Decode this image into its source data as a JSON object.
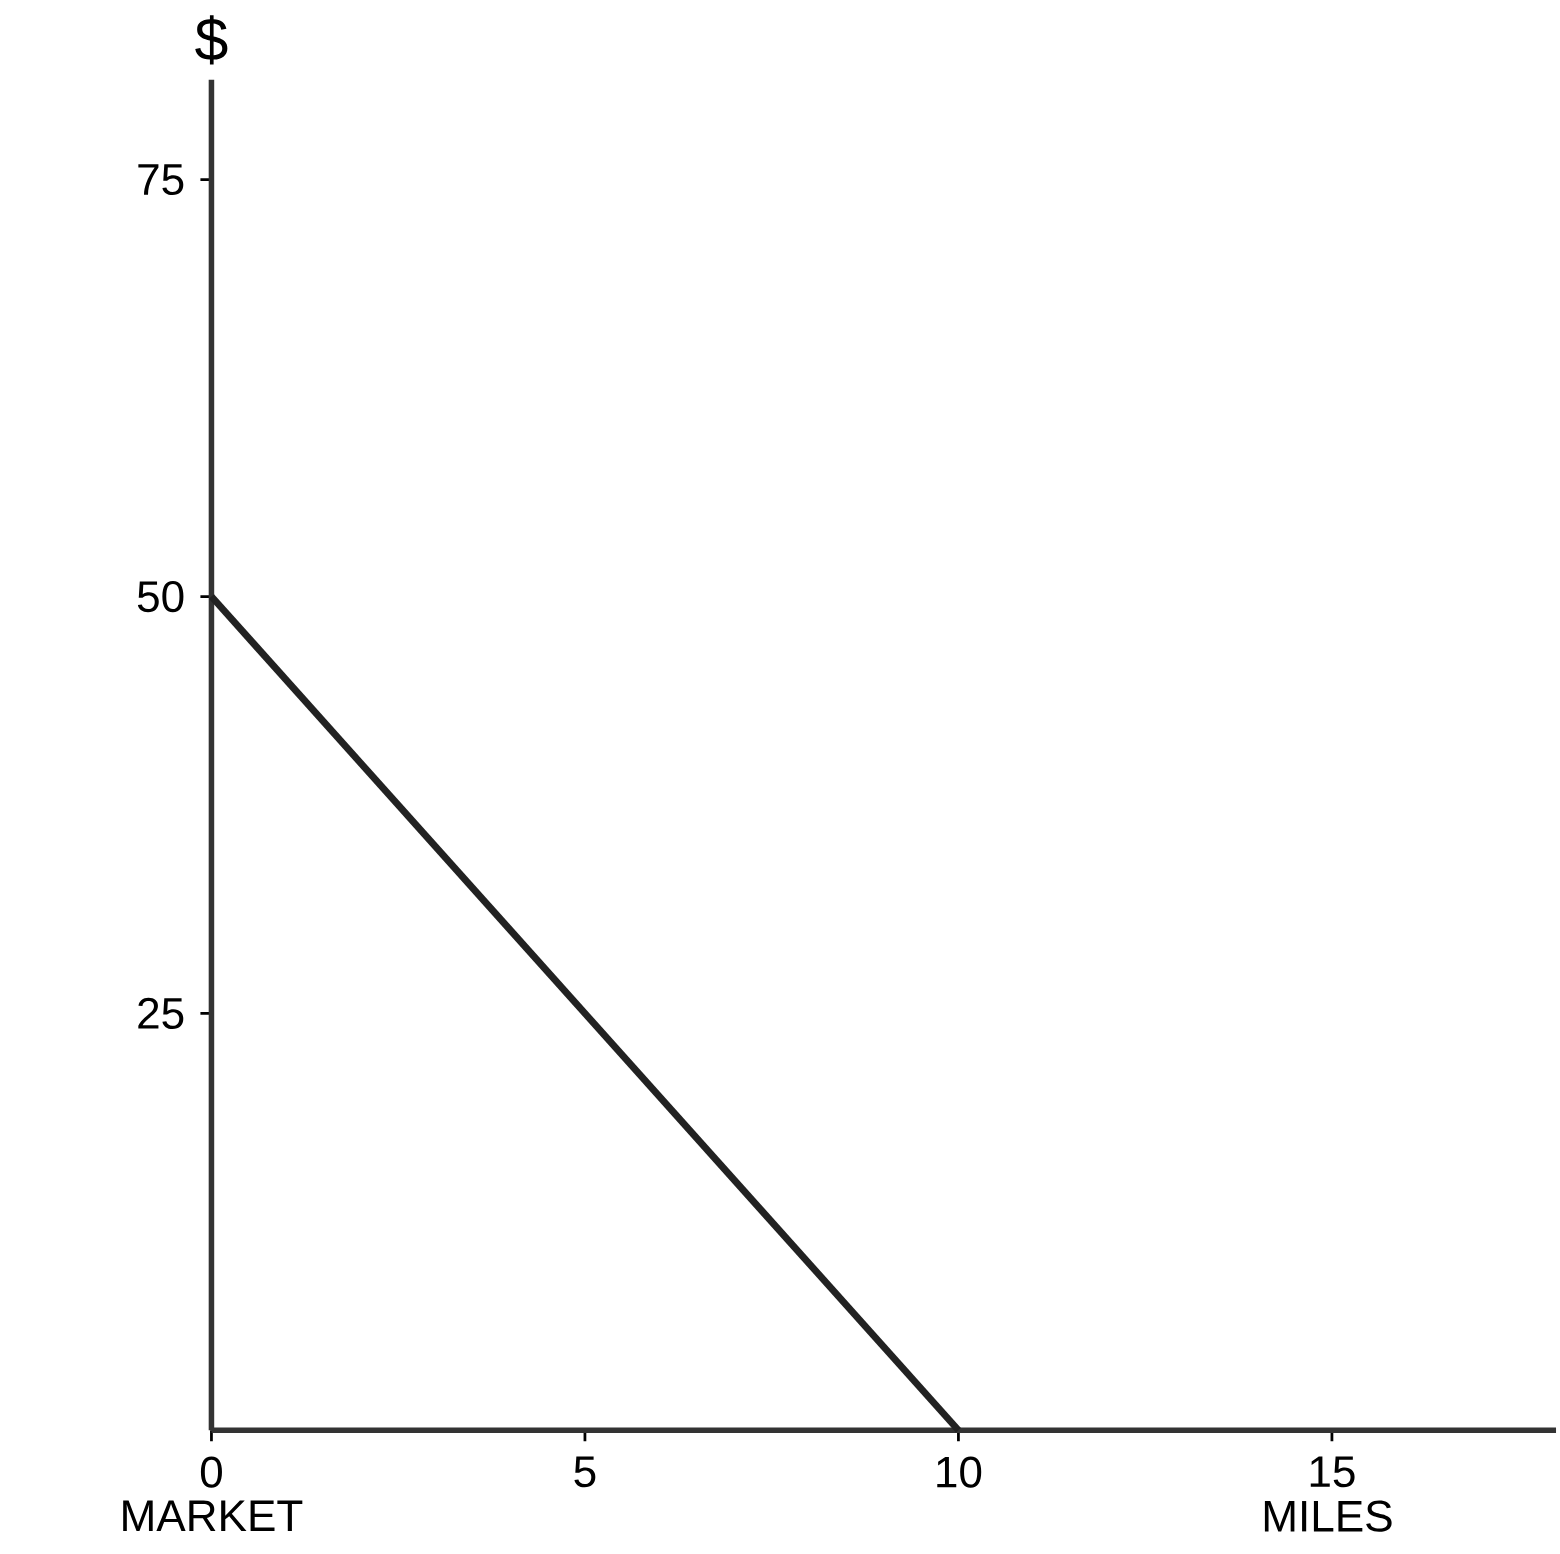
{
  "chart_data": {
    "type": "line",
    "xlabel": "MILES",
    "ylabel": "$",
    "annotations": [
      "MARKET"
    ],
    "x": [
      0,
      10
    ],
    "values": [
      50,
      0
    ],
    "color": "#222222",
    "xlim": [
      0,
      18
    ],
    "ylim": [
      0,
      81
    ],
    "xticks": [
      0,
      5,
      10,
      15
    ],
    "yticks": [
      25,
      50,
      75
    ],
    "grid": false
  }
}
